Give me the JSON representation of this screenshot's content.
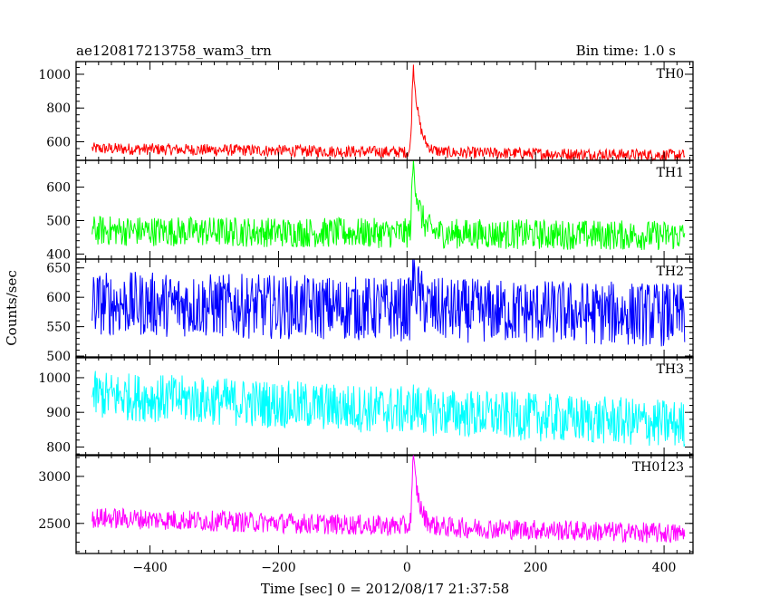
{
  "title_left": "ae120817213758_wam3_trn",
  "title_right": "Bin time: 1.0 s",
  "xlabel": "Time [sec] 0 = 2012/08/17 21:37:58",
  "ylabel": "Counts/sec",
  "chart_data": {
    "type": "line",
    "xlim": [
      -515,
      445
    ],
    "x_ticks": [
      -400,
      -200,
      0,
      200,
      400
    ],
    "x_range": [
      -490,
      432
    ],
    "burst_time": 10,
    "panels": [
      {
        "name": "TH0",
        "color": "#ff0000",
        "ylim": [
          490,
          1075
        ],
        "y_ticks": [
          600,
          800,
          1000
        ],
        "series": [
          {
            "name": "TH0",
            "trend": [
              [
                -490,
                560
              ],
              [
                432,
                520
              ]
            ],
            "noise_amplitude": 35,
            "peak": 1050
          }
        ]
      },
      {
        "name": "TH1",
        "color": "#00ff00",
        "ylim": [
          385,
          680
        ],
        "y_ticks": [
          400,
          500,
          600
        ],
        "series": [
          {
            "name": "TH1",
            "trend": [
              [
                -490,
                470
              ],
              [
                432,
                455
              ]
            ],
            "noise_amplitude": 45,
            "peak": 675
          }
        ]
      },
      {
        "name": "TH2",
        "color": "#0000ff",
        "ylim": [
          497,
          665
        ],
        "y_ticks": [
          500,
          550,
          600,
          650
        ],
        "series": [
          {
            "name": "TH2",
            "trend": [
              [
                -490,
                590
              ],
              [
                432,
                570
              ]
            ],
            "noise_amplitude": 55,
            "peak": 640
          }
        ]
      },
      {
        "name": "TH3",
        "color": "#00ffff",
        "ylim": [
          775,
          1060
        ],
        "y_ticks": [
          800,
          900,
          1000
        ],
        "series": [
          {
            "name": "TH3",
            "trend": [
              [
                -490,
                950
              ],
              [
                432,
                865
              ]
            ],
            "noise_amplitude": 70,
            "peak": 920
          }
        ]
      },
      {
        "name": "TH0123",
        "color": "#ff00ff",
        "ylim": [
          2180,
          3230
        ],
        "y_ticks": [
          2500,
          3000
        ],
        "series": [
          {
            "name": "TH0123",
            "trend": [
              [
                -490,
                2560
              ],
              [
                432,
                2390
              ]
            ],
            "noise_amplitude": 110,
            "peak": 3180
          }
        ]
      }
    ]
  }
}
